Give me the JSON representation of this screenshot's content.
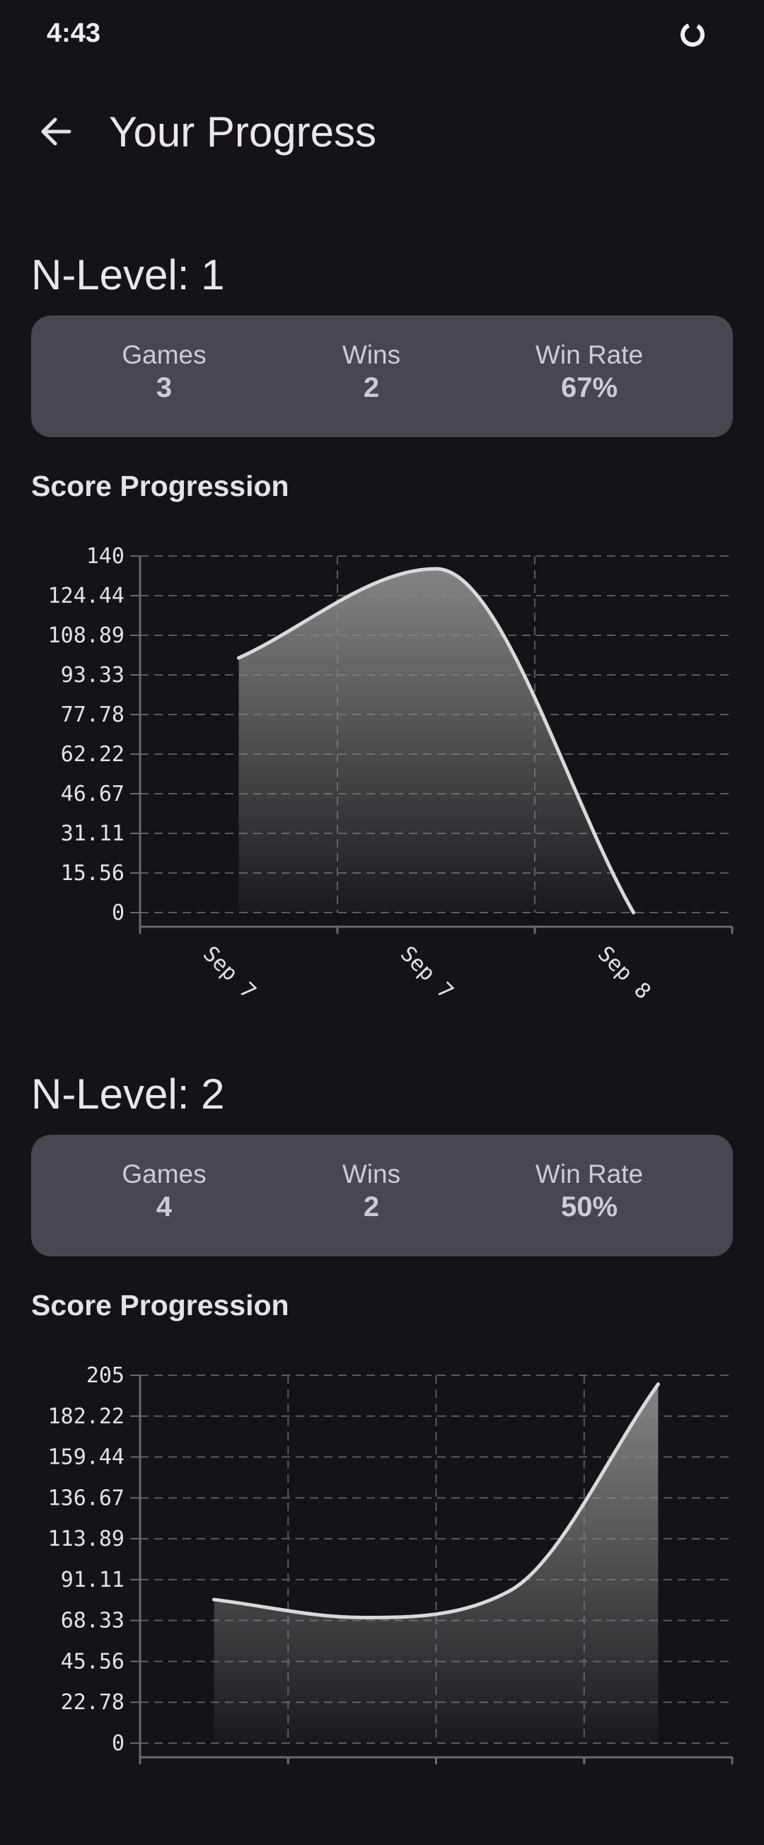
{
  "status_bar": {
    "time": "4:43",
    "spinner_icon": "loading-spinner-icon"
  },
  "app_bar": {
    "back_icon": "arrow-back-icon",
    "title": "Your Progress"
  },
  "levels": [
    {
      "title": "N-Level: 1",
      "stats": {
        "games_label": "Games",
        "games_value": "3",
        "wins_label": "Wins",
        "wins_value": "2",
        "winrate_label": "Win Rate",
        "winrate_value": "67%"
      },
      "chart_title": "Score Progression"
    },
    {
      "title": "N-Level: 2",
      "stats": {
        "games_label": "Games",
        "games_value": "4",
        "wins_label": "Wins",
        "wins_value": "2",
        "winrate_label": "Win Rate",
        "winrate_value": "50%"
      },
      "chart_title": "Score Progression"
    }
  ],
  "chart_data": [
    {
      "type": "area",
      "title": "Score Progression",
      "y_ticks": [
        "140",
        "124.44",
        "108.89",
        "93.33",
        "77.78",
        "62.22",
        "46.67",
        "31.11",
        "15.56",
        "0"
      ],
      "ylim": [
        0,
        140
      ],
      "x_tick_labels": [
        "Sep 7",
        "Sep 7",
        "Sep 8"
      ],
      "x": [
        0.5,
        1.5,
        2.5
      ],
      "values": [
        100,
        135,
        0
      ],
      "xlim": [
        0,
        3
      ],
      "grid": true,
      "line_color": "#d9d9d9",
      "fill_color": "#8a8a8a"
    },
    {
      "type": "area",
      "title": "Score Progression",
      "y_ticks": [
        "205",
        "182.22",
        "159.44",
        "136.67",
        "113.89",
        "91.11",
        "68.33",
        "45.56",
        "22.78",
        "0"
      ],
      "ylim": [
        0,
        205
      ],
      "x_tick_labels": [],
      "x": [
        0.5,
        1.5,
        2.5,
        3.5
      ],
      "values": [
        80,
        70,
        85,
        200
      ],
      "xlim": [
        0,
        4
      ],
      "grid": true,
      "line_color": "#d9d9d9",
      "fill_color": "#8a8a8a"
    }
  ]
}
